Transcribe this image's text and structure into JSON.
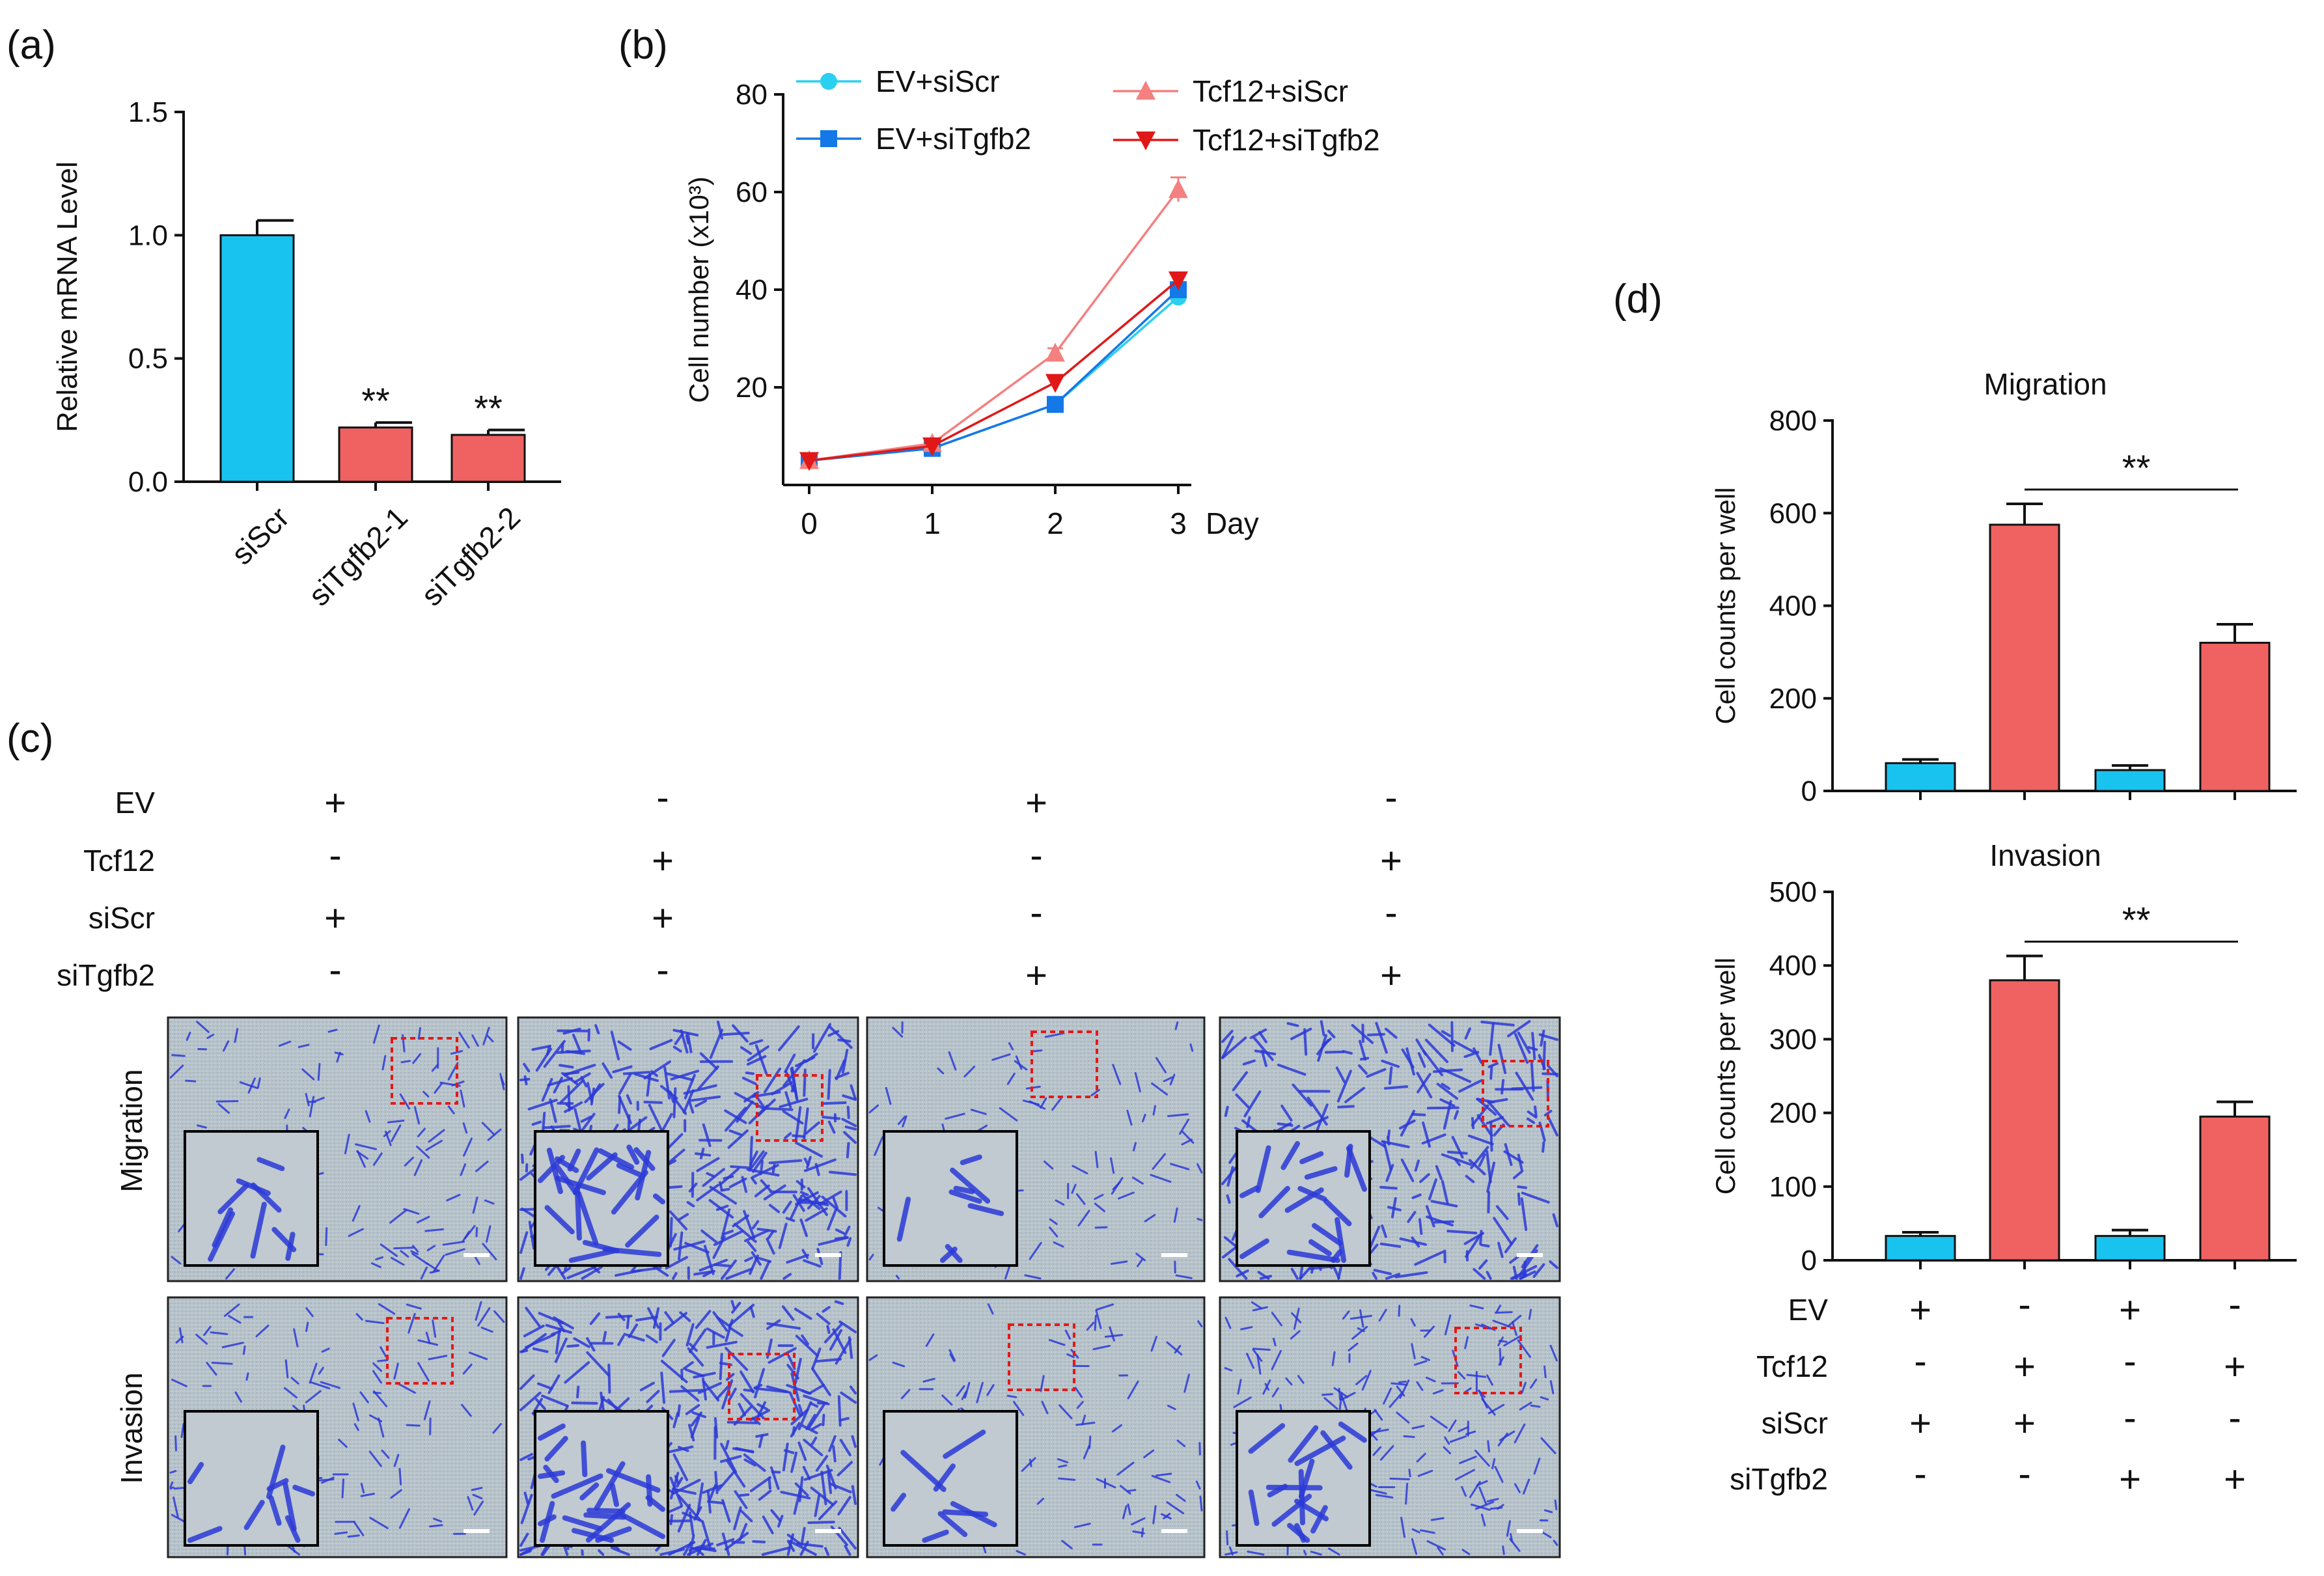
{
  "colors": {
    "cyan_bar": "#19c3ef",
    "red_bar": "#f06262",
    "ev_siscr": "#2ad0f0",
    "ev_sitgfb2": "#1478e6",
    "tcf12_siscr": "#f48080",
    "tcf12_sitgfb2": "#e01818",
    "micro_bg": "#b4c0c8",
    "stain": "#2c3ad8",
    "inset_border": "#000000",
    "roi_border": "#e41818"
  },
  "panel_labels": {
    "a": "(a)",
    "b": "(b)",
    "c": "(c)",
    "d": "(d)"
  },
  "chart_data": [
    {
      "id": "a",
      "type": "bar",
      "title": "",
      "categories": [
        "siScr",
        "siTgfb2-1",
        "siTgfb2-2"
      ],
      "values": [
        1.0,
        0.22,
        0.19
      ],
      "errors": [
        0.06,
        0.02,
        0.02
      ],
      "bar_colors": [
        "cyan",
        "red",
        "red"
      ],
      "annotations": [
        "",
        "**",
        "**"
      ],
      "ylabel": "Relative mRNA Level",
      "xlabel": "",
      "ylim": [
        0,
        1.5
      ],
      "yticks": [
        0.0,
        0.5,
        1.0,
        1.5
      ],
      "ytick_labels": [
        "0.0",
        "0.5",
        "1.0",
        "1.5"
      ]
    },
    {
      "id": "b",
      "type": "line",
      "title": "",
      "x": [
        0,
        1,
        2,
        3
      ],
      "xtick_labels": [
        "0",
        "1",
        "2",
        "3"
      ],
      "xlabel": "Day",
      "ylabel": "Cell number (x10³)",
      "ylim": [
        0,
        80
      ],
      "yticks": [
        20,
        40,
        60,
        80
      ],
      "ytick_labels": [
        "20",
        "40",
        "60",
        "80"
      ],
      "legend": [
        "EV+siScr",
        "EV+siTgfb2",
        "Tcf12+siScr",
        "Tcf12+siTgfb2"
      ],
      "series": [
        {
          "name": "EV+siScr",
          "marker": "circle",
          "values": [
            5,
            7.5,
            16.5,
            38.5
          ],
          "errors": [
            0,
            0.5,
            1,
            1.5
          ]
        },
        {
          "name": "EV+siTgfb2",
          "marker": "square",
          "values": [
            5,
            7.5,
            16.5,
            40
          ],
          "errors": [
            0,
            0.5,
            1,
            1.5
          ]
        },
        {
          "name": "Tcf12+siScr",
          "marker": "triangle-up",
          "values": [
            5,
            8.5,
            27,
            60.5
          ],
          "errors": [
            0,
            0.5,
            1,
            2.5
          ]
        },
        {
          "name": "Tcf12+siTgfb2",
          "marker": "triangle-down",
          "values": [
            5,
            8,
            21,
            42
          ],
          "errors": [
            0,
            0.5,
            1,
            1.5
          ]
        }
      ]
    },
    {
      "id": "d-migration",
      "type": "bar",
      "title": "Migration",
      "categories": [
        "EV+siScr",
        "Tcf12+siScr",
        "EV+siTgfb2",
        "Tcf12+siTgfb2"
      ],
      "values": [
        60,
        575,
        45,
        320
      ],
      "errors": [
        8,
        45,
        10,
        40
      ],
      "bar_colors": [
        "cyan",
        "red",
        "cyan",
        "red"
      ],
      "significance": {
        "from": 1,
        "to": 3,
        "label": "**"
      },
      "ylabel": "Cell counts per well",
      "xlabel": "",
      "ylim": [
        0,
        800
      ],
      "yticks": [
        0,
        200,
        400,
        600,
        800
      ],
      "ytick_labels": [
        "0",
        "200",
        "400",
        "600",
        "800"
      ]
    },
    {
      "id": "d-invasion",
      "type": "bar",
      "title": "Invasion",
      "categories": [
        "EV+siScr",
        "Tcf12+siScr",
        "EV+siTgfb2",
        "Tcf12+siTgfb2"
      ],
      "values": [
        33,
        380,
        33,
        195
      ],
      "errors": [
        5,
        33,
        8,
        20
      ],
      "bar_colors": [
        "cyan",
        "red",
        "cyan",
        "red"
      ],
      "significance": {
        "from": 1,
        "to": 3,
        "label": "**"
      },
      "ylabel": "Cell counts per well",
      "xlabel": "",
      "ylim": [
        0,
        500
      ],
      "yticks": [
        0,
        100,
        200,
        300,
        400,
        500
      ],
      "ytick_labels": [
        "0",
        "100",
        "200",
        "300",
        "400",
        "500"
      ]
    }
  ],
  "condition_table_c": {
    "rows": [
      {
        "name": "EV",
        "signs": [
          "+",
          "-",
          "+",
          "-"
        ]
      },
      {
        "name": "Tcf12",
        "signs": [
          "-",
          "+",
          "-",
          "+"
        ]
      },
      {
        "name": "siScr",
        "signs": [
          "+",
          "+",
          "-",
          "-"
        ]
      },
      {
        "name": "siTgfb2",
        "signs": [
          "-",
          "-",
          "+",
          "+"
        ]
      }
    ]
  },
  "condition_table_d": {
    "rows": [
      {
        "name": "EV",
        "signs": [
          "+",
          "-",
          "+",
          "-"
        ]
      },
      {
        "name": "Tcf12",
        "signs": [
          "-",
          "+",
          "-",
          "+"
        ]
      },
      {
        "name": "siScr",
        "signs": [
          "+",
          "+",
          "-",
          "-"
        ]
      },
      {
        "name": "siTgfb2",
        "signs": [
          "-",
          "-",
          "+",
          "+"
        ]
      }
    ]
  },
  "micrographs": {
    "row_labels": [
      "Migration",
      "Invasion"
    ],
    "density": [
      [
        0.25,
        1.0,
        0.2,
        0.7
      ],
      [
        0.3,
        0.95,
        0.2,
        0.6
      ]
    ]
  }
}
